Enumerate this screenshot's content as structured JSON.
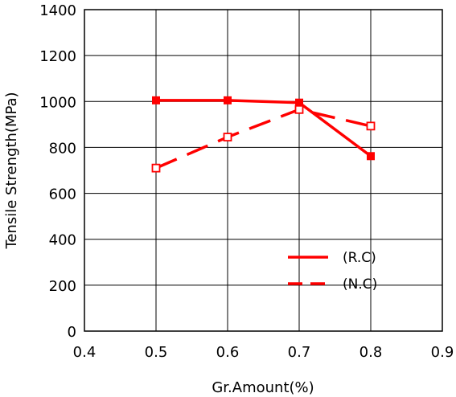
{
  "chart_data": {
    "type": "line",
    "title": "",
    "xlabel": "Gr.Amount(%)",
    "ylabel": "Tensile Strength(MPa)",
    "xlim": [
      0.4,
      0.9
    ],
    "ylim": [
      0,
      1400
    ],
    "x_ticks": [
      "0.4",
      "0.5",
      "0.6",
      "0.7",
      "0.8",
      "0.9"
    ],
    "y_ticks": [
      "0",
      "200",
      "400",
      "600",
      "800",
      "1000",
      "1200",
      "1400"
    ],
    "grid": true,
    "legend_position": "bottom-right",
    "series": [
      {
        "name": "(R.C)",
        "style": "solid",
        "marker": "filled-square",
        "color": "#ff0000",
        "x": [
          0.5,
          0.6,
          0.7,
          0.8
        ],
        "values": [
          1005,
          1005,
          995,
          762
        ]
      },
      {
        "name": "(N.C)",
        "style": "dashed",
        "marker": "open-square",
        "color": "#ff0000",
        "x": [
          0.5,
          0.6,
          0.7,
          0.8
        ],
        "values": [
          710,
          845,
          965,
          893
        ]
      }
    ]
  }
}
